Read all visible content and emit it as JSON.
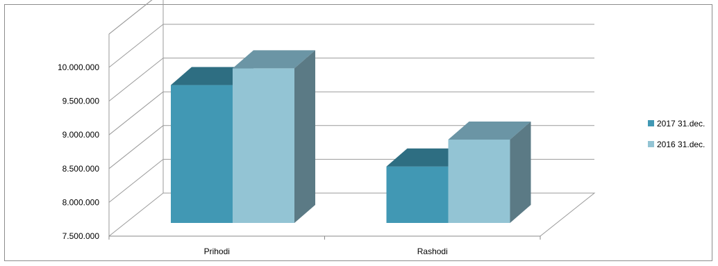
{
  "chart_data": {
    "type": "bar",
    "categories": [
      "Prihodi",
      "Rashodi"
    ],
    "series": [
      {
        "name": "2017 31.dec.",
        "values": [
          9550000,
          8340000
        ],
        "color": "#4198b4",
        "top_color": "#2e6e82",
        "side_color": "#2e6e82"
      },
      {
        "name": "2016 31.dec.",
        "values": [
          9800000,
          8740000
        ],
        "color": "#93c4d4",
        "top_color": "#6b95a5",
        "side_color": "#5b7a85"
      }
    ],
    "y_ticks": [
      "7.500.000",
      "8.000.000",
      "8.500.000",
      "9.000.000",
      "9.500.000",
      "10.000.000"
    ],
    "ylim": [
      7500000,
      10000000
    ],
    "grid": true,
    "legend_position": "right",
    "title": "",
    "xlabel": "",
    "ylabel": ""
  }
}
